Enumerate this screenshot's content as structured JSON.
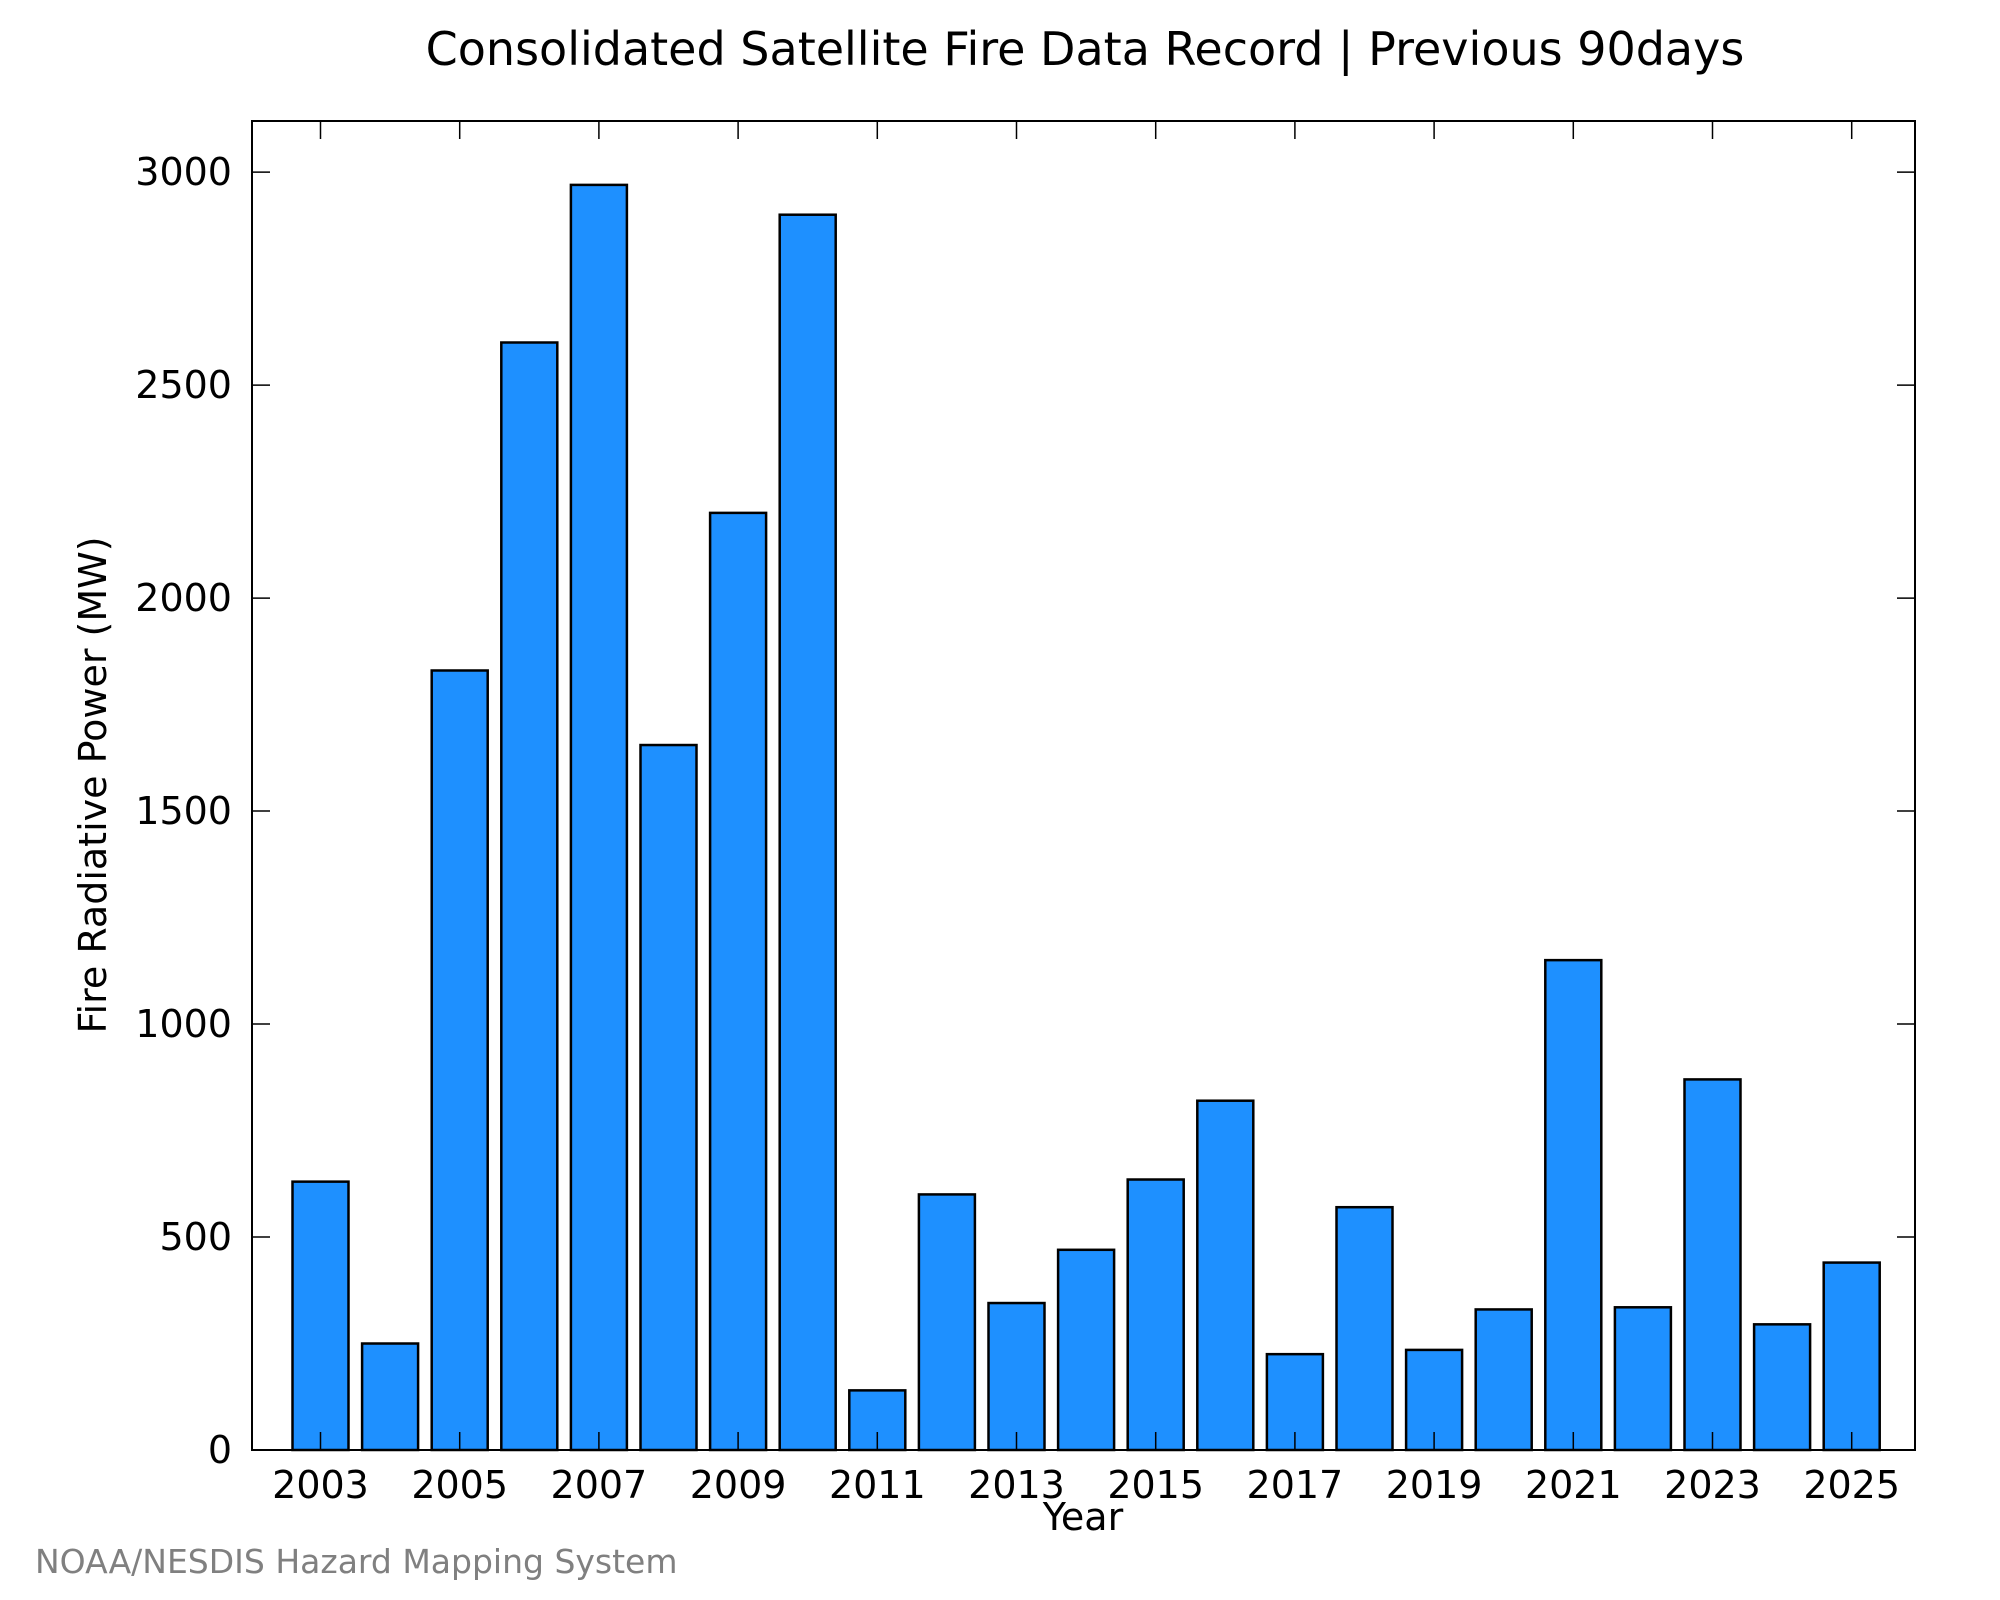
{
  "chart_data": {
    "type": "bar",
    "title": "Consolidated Satellite Fire Data Record | Previous 90days",
    "xlabel": "Year",
    "ylabel": "Fire Radiative Power (MW)",
    "categories": [
      "2003",
      "2004",
      "2005",
      "2006",
      "2007",
      "2008",
      "2009",
      "2010",
      "2011",
      "2012",
      "2013",
      "2014",
      "2015",
      "2016",
      "2017",
      "2018",
      "2019",
      "2020",
      "2021",
      "2022",
      "2023",
      "2024",
      "2025"
    ],
    "values": [
      630,
      250,
      1830,
      2600,
      2970,
      1655,
      2200,
      2900,
      140,
      600,
      345,
      470,
      635,
      820,
      225,
      570,
      235,
      330,
      1150,
      335,
      870,
      295,
      440
    ],
    "x_tick_labels": [
      "2003",
      "2005",
      "2007",
      "2009",
      "2011",
      "2013",
      "2015",
      "2017",
      "2019",
      "2021",
      "2023",
      "2025"
    ],
    "y_ticks": [
      0,
      500,
      1000,
      1500,
      2000,
      2500,
      3000
    ],
    "y_tick_labels": [
      "0",
      "500",
      "1000",
      "1500",
      "2000",
      "2500",
      "3000"
    ],
    "ylim": [
      0,
      3120
    ],
    "grid": false,
    "legend": "none",
    "colors": {
      "bar_fill": "#1e90ff",
      "bar_stroke": "#000000",
      "axis": "#000000",
      "credit": "#808080"
    }
  },
  "credit": "NOAA/NESDIS Hazard Mapping System"
}
